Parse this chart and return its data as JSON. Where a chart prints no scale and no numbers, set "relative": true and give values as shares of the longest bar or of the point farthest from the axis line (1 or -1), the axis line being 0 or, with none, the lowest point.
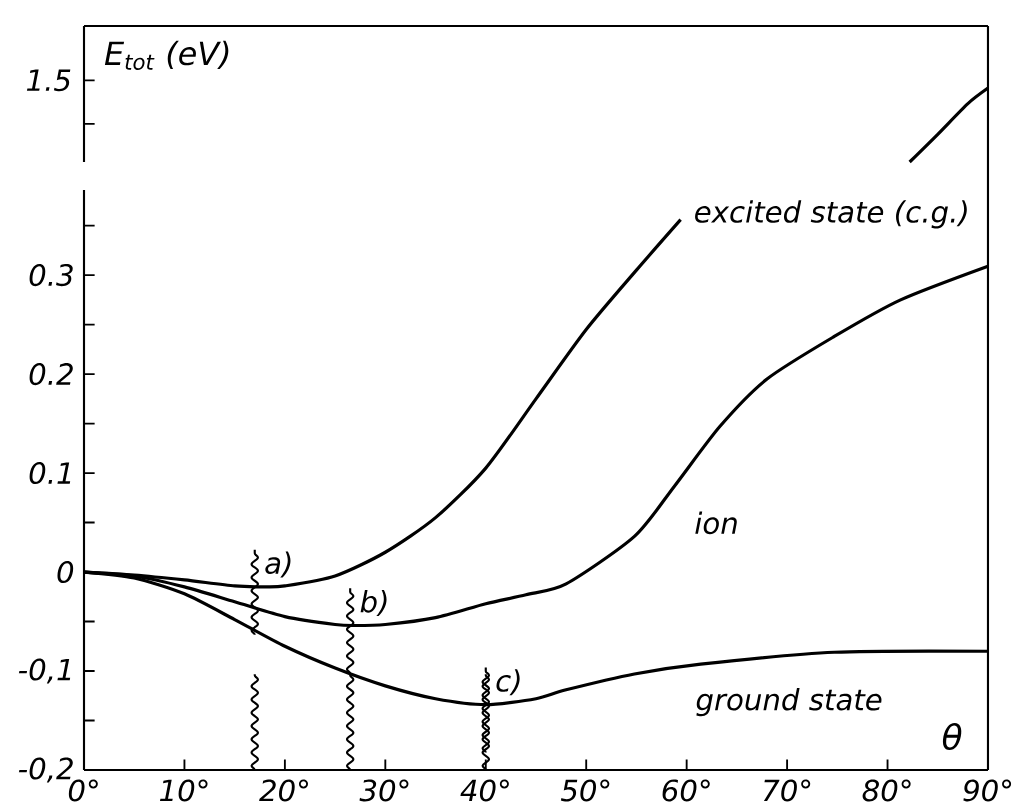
{
  "chart_data": [
    {
      "type": "line",
      "relative": true,
      "ylabel": "E$_{tot}$ (eV)",
      "xlim": [
        0,
        90
      ],
      "annotations": [
        "1.5"
      ],
      "series": [
        {
          "color": "#000000",
          "x": [
            82.2,
            85,
            88,
            90
          ],
          "values": [
            0,
            0.375,
            0.79,
            1
          ]
        }
      ]
    },
    {
      "type": "line",
      "xlabel": "θ",
      "xlim": [
        0,
        90
      ],
      "ylim": [
        -0.2,
        0.386
      ],
      "xticks": [
        {
          "value": 0,
          "label": "0°"
        },
        {
          "value": 10,
          "label": "10°"
        },
        {
          "value": 20,
          "label": "20°"
        },
        {
          "value": 30,
          "label": "30°"
        },
        {
          "value": 40,
          "label": "40°"
        },
        {
          "value": 50,
          "label": "50°"
        },
        {
          "value": 60,
          "label": "60°"
        },
        {
          "value": 70,
          "label": "70°"
        },
        {
          "value": 80,
          "label": "80°"
        },
        {
          "value": 90,
          "label": "90°"
        }
      ],
      "yticks": [
        {
          "value": -0.2,
          "label": "-0,2"
        },
        {
          "value": -0.15,
          "label": null
        },
        {
          "value": -0.1,
          "label": "-0,1"
        },
        {
          "value": -0.05,
          "label": null
        },
        0,
        {
          "value": 0.05,
          "label": null
        },
        {
          "value": 0.1,
          "label": "0.1"
        },
        {
          "value": 0.15,
          "label": null
        },
        {
          "value": 0.2,
          "label": "0.2"
        },
        {
          "value": 0.25,
          "label": null
        },
        {
          "value": 0.3,
          "label": "0.3"
        },
        {
          "value": 0.35,
          "label": null
        }
      ],
      "series": [
        {
          "name": "excited state (c.g.)",
          "color": "#000000",
          "x": [
            0,
            5,
            10,
            15,
            18,
            20,
            25,
            30,
            35,
            40,
            45,
            50,
            55,
            59.4
          ],
          "values": [
            0,
            -0.003,
            -0.008,
            -0.014,
            -0.015,
            -0.014,
            -0.004,
            0.02,
            0.055,
            0.105,
            0.175,
            0.245,
            0.305,
            0.356
          ]
        },
        {
          "name": "ion",
          "color": "#000000",
          "x": [
            0,
            5,
            10,
            15,
            20,
            25,
            27,
            30,
            35,
            40,
            44,
            48,
            54.8,
            58.8,
            63.3,
            68,
            74.7,
            81.3,
            90
          ],
          "values": [
            0,
            -0.004,
            -0.015,
            -0.03,
            -0.045,
            -0.053,
            -0.054,
            -0.053,
            -0.046,
            -0.032,
            -0.023,
            -0.012,
            0.036,
            0.087,
            0.147,
            0.195,
            0.238,
            0.275,
            0.309
          ]
        },
        {
          "name": "ground state",
          "color": "#000000",
          "x": [
            0,
            5,
            10,
            15,
            20,
            25,
            30,
            35,
            40,
            45,
            48,
            54.8,
            61.4,
            74.7,
            90
          ],
          "values": [
            0,
            -0.006,
            -0.022,
            -0.048,
            -0.075,
            -0.097,
            -0.115,
            -0.128,
            -0.134,
            -0.128,
            -0.119,
            -0.103,
            -0.093,
            -0.081,
            -0.08
          ]
        }
      ],
      "annotations": [
        {
          "text": "a)",
          "x": 17,
          "y": -0.015
        },
        {
          "text": "b)",
          "x": 26.5,
          "y": -0.054
        },
        {
          "text": "c)",
          "x": 40,
          "y": -0.134
        }
      ]
    }
  ]
}
